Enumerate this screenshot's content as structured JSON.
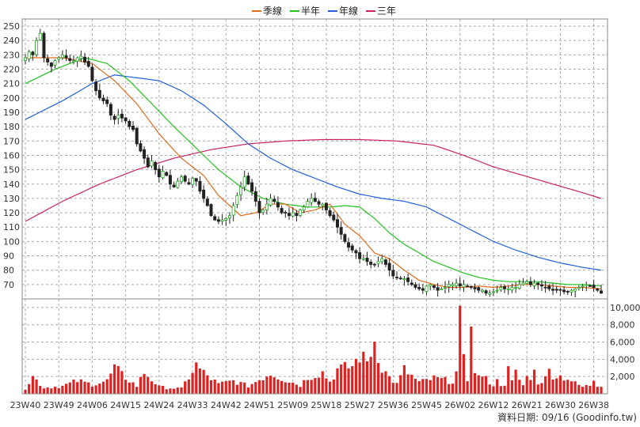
{
  "chart_data": {
    "type": "candlestick",
    "x_ticks": [
      "23W40",
      "23W49",
      "24W06",
      "24W15",
      "24W24",
      "24W33",
      "24W42",
      "24W51",
      "25W09",
      "25W18",
      "25W27",
      "25W36",
      "25W45",
      "26W02",
      "26W12",
      "26W21",
      "26W30",
      "26W38"
    ],
    "price_axis": {
      "ylim": [
        60,
        255
      ],
      "ticks": [
        70,
        80,
        90,
        100,
        110,
        120,
        130,
        140,
        150,
        160,
        170,
        180,
        190,
        200,
        210,
        220,
        230,
        240,
        250
      ]
    },
    "volume_axis": {
      "ylim": [
        0,
        11000
      ],
      "ticks": [
        "2,000",
        "4,000",
        "6,000",
        "8,000",
        "10,000"
      ],
      "tick_values": [
        2000,
        4000,
        6000,
        8000,
        10000
      ]
    },
    "legend": [
      {
        "name": "季線",
        "color": "#e06a1a"
      },
      {
        "name": "半年",
        "color": "#22c41e"
      },
      {
        "name": "年線",
        "color": "#2060e0"
      },
      {
        "name": "三年",
        "color": "#cc2266"
      }
    ],
    "up_color": "#22aa22",
    "down_color": "#222222",
    "volume_color": "#dd2222",
    "grid": true,
    "weeks": 156,
    "anchors_close": [
      [
        0,
        228
      ],
      [
        1,
        232
      ],
      [
        2,
        230
      ],
      [
        3,
        240
      ],
      [
        4,
        245
      ],
      [
        5,
        228
      ],
      [
        6,
        225
      ],
      [
        7,
        222
      ],
      [
        8,
        226
      ],
      [
        9,
        228
      ],
      [
        10,
        230
      ],
      [
        11,
        228
      ],
      [
        12,
        226
      ],
      [
        13,
        226
      ],
      [
        14,
        228
      ],
      [
        15,
        229
      ],
      [
        16,
        225
      ],
      [
        17,
        222
      ],
      [
        18,
        212
      ],
      [
        19,
        205
      ],
      [
        20,
        200
      ],
      [
        21,
        198
      ],
      [
        22,
        196
      ],
      [
        23,
        188
      ],
      [
        24,
        185
      ],
      [
        25,
        188
      ],
      [
        26,
        186
      ],
      [
        27,
        184
      ],
      [
        28,
        180
      ],
      [
        29,
        178
      ],
      [
        30,
        168
      ],
      [
        31,
        163
      ],
      [
        32,
        158
      ],
      [
        33,
        152
      ],
      [
        34,
        156
      ],
      [
        35,
        150
      ],
      [
        36,
        145
      ],
      [
        37,
        149
      ],
      [
        38,
        146
      ],
      [
        39,
        140
      ],
      [
        40,
        138
      ],
      [
        41,
        142
      ],
      [
        42,
        145
      ],
      [
        43,
        142
      ],
      [
        44,
        140
      ],
      [
        45,
        144
      ],
      [
        46,
        142
      ],
      [
        47,
        135
      ],
      [
        48,
        130
      ],
      [
        49,
        125
      ],
      [
        50,
        118
      ],
      [
        51,
        115
      ],
      [
        52,
        114
      ],
      [
        53,
        115
      ],
      [
        54,
        116
      ],
      [
        55,
        118
      ],
      [
        56,
        125
      ],
      [
        57,
        132
      ],
      [
        58,
        138
      ],
      [
        59,
        145
      ],
      [
        60,
        140
      ],
      [
        61,
        135
      ],
      [
        62,
        128
      ],
      [
        63,
        120
      ],
      [
        64,
        122
      ],
      [
        65,
        126
      ],
      [
        66,
        130
      ],
      [
        67,
        128
      ],
      [
        68,
        124
      ],
      [
        69,
        120
      ],
      [
        70,
        120
      ],
      [
        71,
        118
      ],
      [
        72,
        120
      ],
      [
        73,
        118
      ],
      [
        74,
        122
      ],
      [
        75,
        124
      ],
      [
        76,
        128
      ],
      [
        77,
        130
      ],
      [
        78,
        128
      ],
      [
        79,
        126
      ],
      [
        80,
        126
      ],
      [
        81,
        122
      ],
      [
        82,
        118
      ],
      [
        83,
        115
      ],
      [
        84,
        110
      ],
      [
        85,
        105
      ],
      [
        86,
        100
      ],
      [
        87,
        96
      ],
      [
        88,
        94
      ],
      [
        89,
        92
      ],
      [
        90,
        88
      ],
      [
        91,
        88
      ],
      [
        92,
        86
      ],
      [
        93,
        84
      ],
      [
        94,
        84
      ],
      [
        95,
        86
      ],
      [
        96,
        88
      ],
      [
        97,
        84
      ],
      [
        98,
        80
      ],
      [
        99,
        76
      ],
      [
        100,
        75
      ],
      [
        101,
        74
      ],
      [
        102,
        74
      ],
      [
        103,
        72
      ],
      [
        104,
        70
      ],
      [
        105,
        68
      ],
      [
        106,
        67
      ],
      [
        107,
        66
      ],
      [
        108,
        69
      ],
      [
        109,
        70
      ],
      [
        110,
        68
      ],
      [
        111,
        66
      ],
      [
        112,
        67
      ],
      [
        113,
        68
      ],
      [
        114,
        70
      ],
      [
        115,
        70
      ],
      [
        116,
        71
      ],
      [
        117,
        69
      ],
      [
        118,
        70
      ],
      [
        119,
        69
      ],
      [
        120,
        68
      ],
      [
        121,
        67
      ],
      [
        122,
        66
      ],
      [
        123,
        66
      ],
      [
        124,
        64
      ],
      [
        125,
        64
      ],
      [
        126,
        65
      ],
      [
        127,
        66
      ],
      [
        128,
        68
      ],
      [
        129,
        67
      ],
      [
        130,
        67
      ],
      [
        131,
        68
      ],
      [
        132,
        68
      ],
      [
        133,
        70
      ],
      [
        134,
        71
      ],
      [
        135,
        72
      ],
      [
        136,
        70
      ],
      [
        137,
        71
      ],
      [
        138,
        70
      ],
      [
        139,
        69
      ],
      [
        140,
        68
      ],
      [
        141,
        67
      ],
      [
        142,
        66
      ],
      [
        143,
        66
      ],
      [
        144,
        66
      ],
      [
        145,
        65
      ],
      [
        146,
        65
      ],
      [
        147,
        66
      ],
      [
        148,
        67
      ],
      [
        149,
        68
      ],
      [
        150,
        69
      ],
      [
        151,
        70
      ],
      [
        152,
        69
      ],
      [
        153,
        68
      ],
      [
        154,
        66
      ],
      [
        155,
        64
      ]
    ],
    "q_line": [
      [
        0,
        228
      ],
      [
        10,
        228
      ],
      [
        18,
        224
      ],
      [
        24,
        212
      ],
      [
        30,
        196
      ],
      [
        36,
        175
      ],
      [
        42,
        158
      ],
      [
        48,
        146
      ],
      [
        52,
        132
      ],
      [
        58,
        118
      ],
      [
        62,
        120
      ],
      [
        66,
        126
      ],
      [
        70,
        126
      ],
      [
        74,
        120
      ],
      [
        78,
        122
      ],
      [
        82,
        126
      ],
      [
        86,
        112
      ],
      [
        90,
        104
      ],
      [
        94,
        92
      ],
      [
        98,
        88
      ],
      [
        102,
        80
      ],
      [
        106,
        73
      ],
      [
        110,
        70
      ],
      [
        114,
        68
      ],
      [
        118,
        68
      ],
      [
        122,
        69
      ],
      [
        126,
        68
      ],
      [
        130,
        69
      ],
      [
        134,
        70
      ],
      [
        138,
        70
      ],
      [
        142,
        69
      ],
      [
        146,
        68
      ],
      [
        150,
        68
      ],
      [
        155,
        67
      ]
    ],
    "h_line": [
      [
        0,
        210
      ],
      [
        8,
        220
      ],
      [
        16,
        228
      ],
      [
        22,
        224
      ],
      [
        28,
        212
      ],
      [
        34,
        196
      ],
      [
        40,
        180
      ],
      [
        46,
        165
      ],
      [
        52,
        150
      ],
      [
        58,
        138
      ],
      [
        64,
        130
      ],
      [
        70,
        126
      ],
      [
        76,
        124
      ],
      [
        82,
        124
      ],
      [
        86,
        125
      ],
      [
        90,
        124
      ],
      [
        94,
        116
      ],
      [
        98,
        106
      ],
      [
        102,
        98
      ],
      [
        106,
        92
      ],
      [
        110,
        86
      ],
      [
        114,
        82
      ],
      [
        118,
        78
      ],
      [
        122,
        75
      ],
      [
        126,
        73
      ],
      [
        130,
        72
      ],
      [
        134,
        72
      ],
      [
        138,
        72
      ],
      [
        142,
        71
      ],
      [
        146,
        70
      ],
      [
        150,
        70
      ],
      [
        155,
        69
      ]
    ],
    "y_line": [
      [
        0,
        185
      ],
      [
        10,
        198
      ],
      [
        18,
        210
      ],
      [
        24,
        216
      ],
      [
        30,
        214
      ],
      [
        36,
        212
      ],
      [
        42,
        205
      ],
      [
        48,
        195
      ],
      [
        54,
        182
      ],
      [
        60,
        168
      ],
      [
        66,
        158
      ],
      [
        72,
        150
      ],
      [
        78,
        144
      ],
      [
        84,
        138
      ],
      [
        90,
        133
      ],
      [
        96,
        130
      ],
      [
        102,
        128
      ],
      [
        108,
        124
      ],
      [
        114,
        116
      ],
      [
        120,
        108
      ],
      [
        126,
        100
      ],
      [
        132,
        94
      ],
      [
        138,
        89
      ],
      [
        144,
        85
      ],
      [
        150,
        82
      ],
      [
        155,
        80
      ]
    ],
    "t_line": [
      [
        0,
        114
      ],
      [
        10,
        128
      ],
      [
        20,
        140
      ],
      [
        30,
        150
      ],
      [
        40,
        158
      ],
      [
        50,
        164
      ],
      [
        60,
        168
      ],
      [
        70,
        170
      ],
      [
        80,
        171
      ],
      [
        90,
        171
      ],
      [
        100,
        170
      ],
      [
        110,
        167
      ],
      [
        118,
        160
      ],
      [
        126,
        152
      ],
      [
        134,
        146
      ],
      [
        142,
        140
      ],
      [
        150,
        134
      ],
      [
        155,
        130
      ]
    ],
    "volume_anchors": [
      [
        0,
        600
      ],
      [
        2,
        2000
      ],
      [
        5,
        700
      ],
      [
        10,
        900
      ],
      [
        14,
        1500
      ],
      [
        18,
        1100
      ],
      [
        22,
        1500
      ],
      [
        24,
        3000
      ],
      [
        26,
        2200
      ],
      [
        30,
        900
      ],
      [
        32,
        2500
      ],
      [
        36,
        800
      ],
      [
        38,
        700
      ],
      [
        42,
        600
      ],
      [
        46,
        3300
      ],
      [
        48,
        2400
      ],
      [
        52,
        1100
      ],
      [
        56,
        1500
      ],
      [
        60,
        900
      ],
      [
        66,
        2400
      ],
      [
        70,
        1600
      ],
      [
        74,
        1000
      ],
      [
        76,
        1900
      ],
      [
        80,
        2500
      ],
      [
        82,
        1400
      ],
      [
        84,
        2800
      ],
      [
        88,
        3200
      ],
      [
        90,
        4400
      ],
      [
        92,
        3700
      ],
      [
        94,
        6100
      ],
      [
        96,
        3000
      ],
      [
        98,
        1900
      ],
      [
        100,
        1100
      ],
      [
        102,
        2800
      ],
      [
        106,
        1300
      ],
      [
        110,
        1800
      ],
      [
        114,
        1500
      ],
      [
        118,
        1400
      ],
      [
        122,
        2400
      ],
      [
        126,
        1000
      ],
      [
        130,
        1200
      ],
      [
        134,
        1800
      ],
      [
        136,
        2000
      ],
      [
        138,
        1300
      ],
      [
        142,
        2200
      ],
      [
        144,
        2000
      ],
      [
        146,
        1800
      ],
      [
        148,
        1200
      ],
      [
        150,
        800
      ],
      [
        152,
        1000
      ],
      [
        155,
        1000
      ]
    ],
    "volume_peaks": [
      [
        117,
        10200
      ],
      [
        116,
        2600
      ],
      [
        118,
        4600
      ],
      [
        120,
        7800
      ],
      [
        121,
        2400
      ],
      [
        123,
        2000
      ],
      [
        127,
        1700
      ],
      [
        130,
        3200
      ],
      [
        132,
        2800
      ],
      [
        134,
        1000
      ],
      [
        137,
        2800
      ],
      [
        141,
        2900
      ],
      [
        153,
        1500
      ]
    ]
  },
  "footer": {
    "label": "資料日期: 09/16 (Goodinfo.tw)"
  }
}
